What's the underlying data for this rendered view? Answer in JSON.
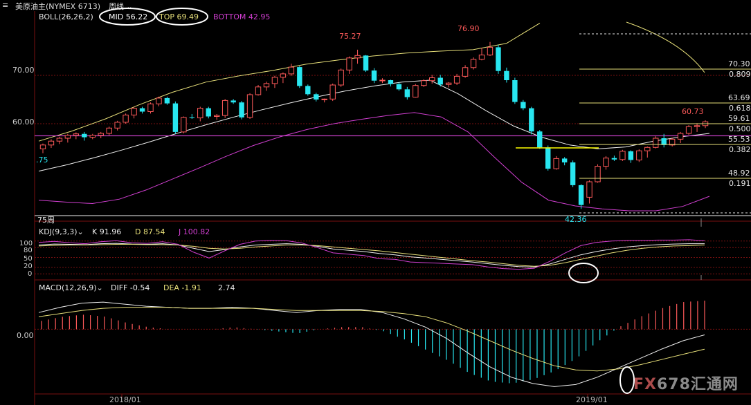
{
  "topbar": {
    "menu_icon": "hamburger-icon",
    "instrument": "美原油主(NYMEX 6713)",
    "period": "周线",
    "period_icon": "chevron-down-icon"
  },
  "boll_legend": {
    "name": "BOLL(26,26,2)",
    "mid": "MID 56.22",
    "top": "TOP 69.49",
    "bottom": "BOTTOM 42.95"
  },
  "kdj_legend": {
    "name": "KDJ(9,3,3)",
    "k": "K 91.96",
    "d": "D 87.54",
    "j": "J 100.82"
  },
  "macd_legend": {
    "name": "MACD(12,26,9)",
    "diff": "DIFF -0.54",
    "dea": "DEA -1.91",
    "hist": "2.74"
  },
  "annotations": {
    "high1": "75.27",
    "high2": "76.90",
    "last": "60.73",
    "low": "42.36",
    "left_cut": ".75",
    "ma_label": "75周"
  },
  "fib_levels": [
    {
      "price": "70.30",
      "ratio": "0.809"
    },
    {
      "price": "63.69",
      "ratio": "0.618"
    },
    {
      "price": "59.61",
      "ratio": "0.500"
    },
    {
      "price": "55.53",
      "ratio": "0.382"
    },
    {
      "price": "48.92",
      "ratio": "0.191"
    }
  ],
  "date_labels": [
    "2018/01",
    "2019/01"
  ],
  "watermark": "FX678汇通网",
  "colors": {
    "up": "#ff5a5a",
    "down": "#28e6f0",
    "mid": "#f0f0f0",
    "upper": "#e8e07a",
    "lower": "#d23fd2",
    "grid": "#7a1010",
    "purple_line": "#c640c6"
  },
  "chart_data": [
    {
      "type": "candlestick",
      "title": "美原油主(NYMEX 6713) 周线",
      "y_ticks": [
        60.0,
        70.0
      ],
      "ylim": [
        41,
        81
      ],
      "candles_ohlc": [
        [
          54.8,
          55.9,
          53.9,
          55.6
        ],
        [
          55.6,
          56.8,
          55.0,
          56.4
        ],
        [
          56.4,
          57.3,
          55.8,
          57.0
        ],
        [
          57.0,
          57.9,
          56.1,
          57.6
        ],
        [
          57.6,
          58.2,
          56.8,
          57.9
        ],
        [
          57.9,
          58.3,
          56.5,
          57.2
        ],
        [
          57.2,
          57.9,
          56.8,
          57.6
        ],
        [
          57.6,
          58.3,
          57.0,
          58.0
        ],
        [
          58.0,
          59.4,
          57.6,
          59.1
        ],
        [
          59.1,
          60.6,
          58.6,
          60.3
        ],
        [
          60.3,
          62.1,
          60.0,
          61.8
        ],
        [
          61.8,
          63.5,
          61.1,
          63.2
        ],
        [
          63.2,
          63.5,
          62.1,
          62.5
        ],
        [
          62.5,
          64.4,
          62.1,
          64.1
        ],
        [
          64.1,
          65.6,
          63.6,
          65.3
        ],
        [
          65.3,
          65.6,
          63.9,
          64.2
        ],
        [
          64.2,
          64.6,
          57.9,
          58.3
        ],
        [
          58.3,
          61.5,
          58.0,
          61.3
        ],
        [
          61.3,
          62.0,
          61.0,
          61.2
        ],
        [
          61.2,
          63.5,
          60.5,
          63.2
        ],
        [
          63.2,
          63.5,
          61.1,
          61.5
        ],
        [
          61.5,
          62.0,
          60.8,
          61.7
        ],
        [
          61.7,
          65.1,
          61.2,
          64.8
        ],
        [
          64.8,
          65.1,
          64.1,
          64.4
        ],
        [
          64.4,
          64.7,
          60.9,
          61.3
        ],
        [
          61.3,
          66.3,
          61.0,
          66.0
        ],
        [
          66.0,
          68.0,
          65.8,
          67.6
        ],
        [
          67.6,
          68.7,
          66.8,
          68.3
        ],
        [
          68.3,
          69.9,
          67.4,
          69.6
        ],
        [
          69.6,
          70.6,
          68.4,
          70.3
        ],
        [
          70.3,
          72.4,
          69.9,
          71.7
        ],
        [
          71.7,
          71.9,
          67.4,
          67.8
        ],
        [
          67.8,
          68.1,
          65.8,
          66.1
        ],
        [
          66.1,
          66.4,
          64.6,
          65.0
        ],
        [
          65.0,
          65.2,
          64.4,
          65.1
        ],
        [
          65.1,
          68.3,
          64.7,
          68.0
        ],
        [
          68.0,
          71.4,
          67.6,
          71.1
        ],
        [
          71.1,
          73.9,
          70.3,
          73.6
        ],
        [
          73.6,
          75.3,
          72.4,
          74.1
        ],
        [
          74.1,
          74.2,
          70.7,
          71.0
        ],
        [
          71.0,
          71.5,
          68.4,
          68.9
        ],
        [
          68.9,
          69.4,
          68.4,
          69.0
        ],
        [
          69.0,
          69.1,
          67.7,
          68.2
        ],
        [
          68.2,
          68.6,
          66.8,
          67.1
        ],
        [
          67.1,
          67.6,
          65.0,
          65.5
        ],
        [
          65.5,
          68.2,
          65.4,
          67.9
        ],
        [
          67.9,
          69.2,
          67.6,
          68.9
        ],
        [
          68.9,
          70.1,
          68.3,
          69.5
        ],
        [
          69.5,
          70.1,
          67.7,
          68.1
        ],
        [
          68.1,
          68.6,
          67.5,
          68.4
        ],
        [
          68.4,
          70.3,
          68.0,
          69.8
        ],
        [
          69.8,
          72.1,
          69.5,
          71.6
        ],
        [
          71.6,
          73.7,
          71.2,
          73.3
        ],
        [
          73.3,
          75.7,
          73.1,
          74.2
        ],
        [
          74.2,
          76.9,
          74.0,
          75.8
        ],
        [
          75.8,
          76.3,
          70.3,
          70.9
        ],
        [
          70.9,
          71.6,
          68.5,
          69.0
        ],
        [
          69.0,
          69.5,
          64.1,
          64.5
        ],
        [
          64.5,
          64.9,
          62.8,
          63.2
        ],
        [
          63.2,
          63.5,
          57.8,
          58.4
        ],
        [
          58.4,
          58.7,
          54.8,
          55.1
        ],
        [
          55.1,
          55.5,
          50.3,
          50.7
        ],
        [
          50.7,
          53.3,
          50.5,
          52.8
        ],
        [
          52.8,
          53.1,
          51.4,
          52.0
        ],
        [
          52.0,
          52.4,
          46.9,
          47.3
        ],
        [
          47.3,
          47.5,
          42.4,
          43.2
        ],
        [
          44.8,
          48.3,
          43.5,
          48.0
        ],
        [
          48.0,
          51.6,
          47.8,
          51.2
        ],
        [
          51.2,
          53.3,
          50.5,
          52.9
        ],
        [
          52.9,
          53.4,
          52.3,
          52.6
        ],
        [
          52.6,
          54.6,
          52.3,
          54.3
        ],
        [
          54.3,
          54.5,
          51.9,
          52.5
        ],
        [
          52.5,
          54.7,
          52.1,
          54.4
        ],
        [
          54.4,
          55.3,
          53.0,
          55.1
        ],
        [
          55.1,
          57.4,
          54.9,
          57.0
        ],
        [
          57.0,
          57.9,
          55.1,
          55.6
        ],
        [
          55.6,
          57.1,
          55.3,
          56.8
        ],
        [
          56.8,
          58.3,
          56.0,
          58.0
        ],
        [
          58.0,
          59.7,
          57.7,
          59.4
        ],
        [
          59.4,
          60.1,
          58.3,
          59.6
        ],
        [
          59.6,
          60.7,
          59.1,
          60.4
        ]
      ],
      "boll_mid_approx": [
        50.2,
        51.5,
        53.0,
        54.6,
        56.3,
        58.1,
        59.8,
        61.4,
        62.9,
        64.3,
        65.6,
        66.8,
        67.8,
        68.6,
        69.0,
        66.2,
        62.7,
        59.5,
        57.2,
        55.6,
        54.8,
        55.2,
        56.4,
        57.3,
        58.0
      ],
      "boll_upper_approx": [
        56.4,
        58.5,
        61.0,
        63.9,
        66.5,
        68.6,
        69.9,
        71.0,
        72.3,
        73.2,
        74.0,
        74.6,
        75.0,
        75.3,
        76.6,
        80.8
      ],
      "boll_lower_approx": [
        44.2,
        43.8,
        43.5,
        44.4,
        46.3,
        48.6,
        50.9,
        53.3,
        55.5,
        57.3,
        58.8,
        60.0,
        60.9,
        61.7,
        62.3,
        61.4,
        58.3,
        53.0,
        47.9,
        44.2,
        43.0,
        42.4,
        42.0,
        42.0,
        42.9,
        45.0
      ]
    },
    {
      "type": "line",
      "title": "KDJ(9,3,3)",
      "y_ticks": [
        0,
        20,
        50,
        80,
        100
      ],
      "ylim": [
        -8,
        108
      ],
      "series": [
        {
          "name": "K",
          "values": [
            88,
            91,
            90,
            89,
            92,
            93,
            91,
            90,
            92,
            88,
            78,
            68,
            74,
            82,
            88,
            90,
            92,
            90,
            84,
            76,
            72,
            68,
            62,
            58,
            52,
            48,
            44,
            40,
            36,
            31,
            26,
            22,
            21,
            30,
            44,
            58,
            68,
            76,
            82,
            86,
            89,
            91,
            92,
            92
          ]
        },
        {
          "name": "D",
          "values": [
            85,
            87,
            88,
            88,
            89,
            90,
            90,
            89,
            89,
            88,
            84,
            78,
            76,
            78,
            82,
            85,
            88,
            88,
            86,
            82,
            78,
            74,
            70,
            65,
            60,
            55,
            50,
            45,
            40,
            36,
            31,
            26,
            23,
            26,
            34,
            44,
            54,
            64,
            72,
            78,
            82,
            85,
            86,
            88
          ]
        },
        {
          "name": "J",
          "values": [
            96,
            99,
            95,
            92,
            98,
            101,
            95,
            93,
            98,
            90,
            66,
            48,
            70,
            90,
            100,
            102,
            101,
            94,
            80,
            64,
            60,
            56,
            46,
            44,
            36,
            34,
            32,
            30,
            28,
            21,
            16,
            14,
            17,
            38,
            64,
            86,
            96,
            100,
            102,
            102,
            103,
            103,
            104,
            101
          ]
        }
      ]
    },
    {
      "type": "bar+line",
      "title": "MACD(12,26,9)",
      "y_ticks": [
        0.0
      ],
      "ylim": [
        -6.2,
        3.4
      ],
      "series": [
        {
          "name": "DIFF",
          "values": [
            1.6,
            2.1,
            2.5,
            2.6,
            2.4,
            2.2,
            2.1,
            2.0,
            2.0,
            2.1,
            2.0,
            1.8,
            1.6,
            1.8,
            1.9,
            1.9,
            1.6,
            1.0,
            0.2,
            -0.9,
            -2.3,
            -3.6,
            -4.6,
            -5.2,
            -5.5,
            -5.3,
            -4.6,
            -3.7,
            -2.8,
            -1.9,
            -1.1,
            -0.54
          ]
        },
        {
          "name": "DEA",
          "values": [
            1.2,
            1.5,
            1.8,
            2.0,
            2.1,
            2.1,
            2.1,
            2.0,
            2.0,
            2.0,
            2.0,
            1.9,
            1.8,
            1.8,
            1.8,
            1.8,
            1.7,
            1.5,
            1.2,
            0.6,
            -0.2,
            -1.1,
            -2.0,
            -2.8,
            -3.5,
            -3.9,
            -4.0,
            -3.8,
            -3.4,
            -2.9,
            -2.4,
            -1.91
          ]
        },
        {
          "name": "MACD",
          "values": [
            0.8,
            1.2,
            1.4,
            1.2,
            0.6,
            0.2,
            0.0,
            0.0,
            0.0,
            0.2,
            0.0,
            -0.2,
            -0.4,
            0.0,
            0.2,
            0.2,
            -0.2,
            -1.0,
            -2.0,
            -3.0,
            -4.2,
            -5.0,
            -5.2,
            -4.8,
            -4.0,
            -2.8,
            -1.2,
            0.2,
            1.2,
            2.0,
            2.6,
            2.74
          ]
        }
      ]
    }
  ]
}
